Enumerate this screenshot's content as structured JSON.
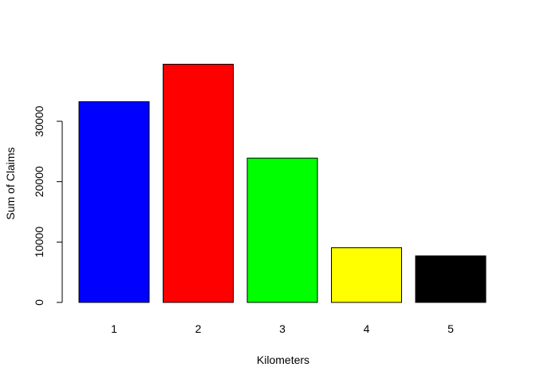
{
  "chart_data": {
    "type": "bar",
    "title": "",
    "xlabel": "Kilometers",
    "ylabel": "Sum of Claims",
    "categories": [
      "1",
      "2",
      "3",
      "4",
      "5"
    ],
    "values": [
      33250,
      39450,
      23900,
      9050,
      7700
    ],
    "colors": [
      "#0000ff",
      "#ff0000",
      "#00ff00",
      "#ffff00",
      "#000000"
    ],
    "yticks": [
      0,
      10000,
      20000,
      30000
    ],
    "ytick_labels": [
      "0",
      "10000",
      "20000",
      "30000"
    ],
    "ylim": [
      0,
      40000
    ],
    "grid": false,
    "legend": "none"
  }
}
